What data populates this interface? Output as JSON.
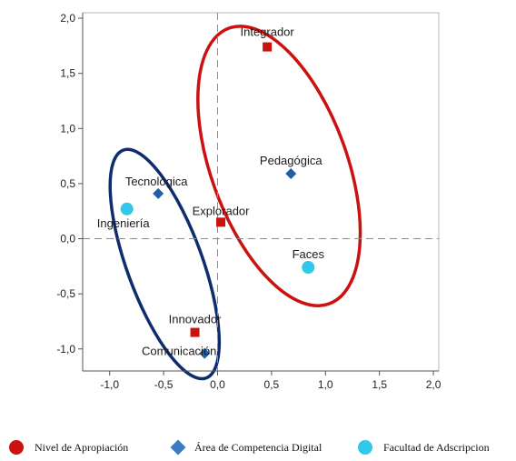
{
  "chart_data": {
    "type": "scatter",
    "xlim": [
      -1.25,
      2.05
    ],
    "ylim": [
      -1.2,
      2.05
    ],
    "x_ticks": [
      "-1,0",
      "-0,5",
      "0,0",
      "0,5",
      "1,0",
      "1,5",
      "2,0"
    ],
    "x_tick_values": [
      -1.0,
      -0.5,
      0.0,
      0.5,
      1.0,
      1.5,
      2.0
    ],
    "y_ticks": [
      "2,0",
      "1,5",
      "1,0",
      "0,5",
      "0,0",
      "-0,5",
      "-1,0"
    ],
    "y_tick_values": [
      2.0,
      1.5,
      1.0,
      0.5,
      0.0,
      -0.5,
      -1.0
    ],
    "reference_lines": {
      "x": 0,
      "y": 0,
      "style": "dashed"
    },
    "grid": false,
    "series": [
      {
        "name": "Nivel de Apropiación",
        "color": "#cc1111",
        "marker": "square",
        "points": [
          {
            "label": "Integrador",
            "x": 0.46,
            "y": 1.74
          },
          {
            "label": "Explorador",
            "x": 0.03,
            "y": 0.15
          },
          {
            "label": "Innovador",
            "x": -0.21,
            "y": -0.85
          }
        ]
      },
      {
        "name": "Área de Competencia Digital",
        "color": "#1f5fa8",
        "marker": "diamond",
        "points": [
          {
            "label": "Pedagógica",
            "x": 0.68,
            "y": 0.59
          },
          {
            "label": "Tecnológica",
            "x": -0.55,
            "y": 0.41
          },
          {
            "label": "Comunicación",
            "x": -0.12,
            "y": -1.04
          }
        ]
      },
      {
        "name": "Facultad de Adscripcion",
        "color": "#33c7ea",
        "marker": "circle",
        "points": [
          {
            "label": "Ingeniería",
            "x": -0.84,
            "y": 0.27
          },
          {
            "label": "Faces",
            "x": 0.84,
            "y": -0.26
          }
        ]
      }
    ],
    "groupings": [
      {
        "color": "#cc1111",
        "cx": 0.57,
        "cy": 0.66,
        "rx": 0.63,
        "ry": 1.33,
        "angle_deg": -20
      },
      {
        "color": "#0f2d6e",
        "cx": -0.49,
        "cy": -0.23,
        "rx": 0.35,
        "ry": 1.1,
        "angle_deg": -20
      }
    ],
    "legend_position": "bottom"
  }
}
